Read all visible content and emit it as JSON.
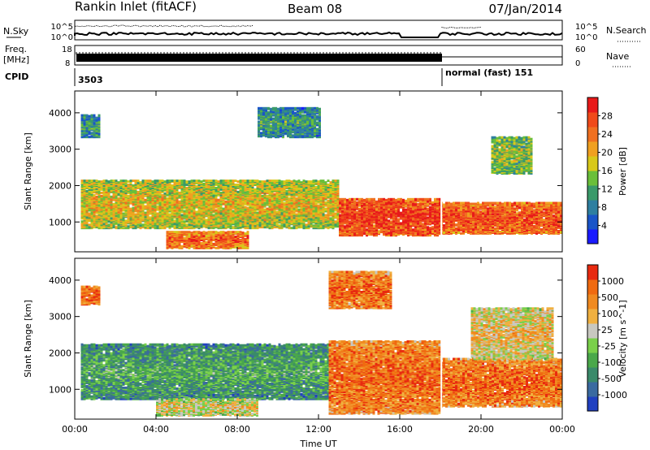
{
  "header": {
    "station": "Rankin Inlet (fitACF)",
    "beam": "Beam 08",
    "date": "07/Jan/2014"
  },
  "status_panels": {
    "nsky_label": "N.Sky",
    "nsky_max": "10^5",
    "nsky_min": "10^0",
    "nsearch_label": "N.Search",
    "nsearch_max": "10^5",
    "nsearch_min": "10^0",
    "freq_label": "Freq.",
    "freq_unit": "[MHz]",
    "freq_max": "18",
    "freq_min": "8",
    "nave_label": "Nave",
    "nave_max": "60",
    "nave_min": "0",
    "cpid_label": "CPID",
    "cpid_first": "3503",
    "cpid_second": "normal (fast) 151"
  },
  "chart_data": [
    {
      "type": "heatmap",
      "name": "power",
      "ylabel": "Slant Range [km]",
      "xlabel": "",
      "x_ticks": [
        "00:00",
        "04:00",
        "08:00",
        "12:00",
        "16:00",
        "20:00",
        "00:00"
      ],
      "y_ticks": [
        "1000",
        "2000",
        "3000",
        "4000"
      ],
      "colorbar": {
        "label": "Power [dB]",
        "ticks": [
          "4",
          "8",
          "12",
          "16",
          "20",
          "24",
          "28"
        ],
        "colors": [
          "#1a1aff",
          "#1a55c8",
          "#2e7fa0",
          "#3a9a6a",
          "#6abf3a",
          "#d8c81a",
          "#f0a020",
          "#f07020",
          "#f04a1a",
          "#e81a1a"
        ]
      },
      "features": [
        {
          "t_start": 0.3,
          "t_end": 13.0,
          "r_low": 800,
          "r_high": 2100,
          "level": 0.55
        },
        {
          "t_start": 13.0,
          "t_end": 18.0,
          "r_low": 600,
          "r_high": 1600,
          "level": 0.85
        },
        {
          "t_start": 18.0,
          "t_end": 24.0,
          "r_low": 650,
          "r_high": 1500,
          "level": 0.8
        },
        {
          "t_start": 4.5,
          "t_end": 8.5,
          "r_low": 250,
          "r_high": 700,
          "level": 0.75
        },
        {
          "t_start": 0.3,
          "t_end": 1.2,
          "r_low": 3300,
          "r_high": 3900,
          "level": 0.3
        },
        {
          "t_start": 9.0,
          "t_end": 12.0,
          "r_low": 3300,
          "r_high": 4100,
          "level": 0.3
        },
        {
          "t_start": 20.5,
          "t_end": 22.5,
          "r_low": 2300,
          "r_high": 3300,
          "level": 0.45
        }
      ]
    },
    {
      "type": "heatmap",
      "name": "velocity",
      "ylabel": "Slant Range [km]",
      "xlabel": "Time UT",
      "x_ticks": [
        "00:00",
        "04:00",
        "08:00",
        "12:00",
        "16:00",
        "20:00",
        "00:00"
      ],
      "y_ticks": [
        "1000",
        "2000",
        "3000",
        "4000"
      ],
      "colorbar": {
        "label": "Velocity [m s^-1]",
        "ticks": [
          "1000",
          "500",
          "100",
          "25",
          "-25",
          "-100",
          "-500",
          "-1000"
        ],
        "colors": [
          "#2040c0",
          "#3a6aa0",
          "#3a8a6a",
          "#4aa84a",
          "#7ad04a",
          "#c8c8c0",
          "#f0b040",
          "#f08a20",
          "#f06a10",
          "#e82a10"
        ]
      },
      "features": [
        {
          "t_start": 0.3,
          "t_end": 12.5,
          "r_low": 700,
          "r_high": 2200,
          "level": 0.3
        },
        {
          "t_start": 12.5,
          "t_end": 18.0,
          "r_low": 300,
          "r_high": 2300,
          "level": 0.8
        },
        {
          "t_start": 18.0,
          "t_end": 24.0,
          "r_low": 500,
          "r_high": 1800,
          "level": 0.8
        },
        {
          "t_start": 4.0,
          "t_end": 9.0,
          "r_low": 250,
          "r_high": 700,
          "level": 0.55
        },
        {
          "t_start": 0.3,
          "t_end": 1.2,
          "r_low": 3300,
          "r_high": 3800,
          "level": 0.85
        },
        {
          "t_start": 12.5,
          "t_end": 15.5,
          "r_low": 3200,
          "r_high": 4200,
          "level": 0.8
        },
        {
          "t_start": 19.5,
          "t_end": 23.5,
          "r_low": 1800,
          "r_high": 3200,
          "level": 0.6
        }
      ]
    }
  ]
}
